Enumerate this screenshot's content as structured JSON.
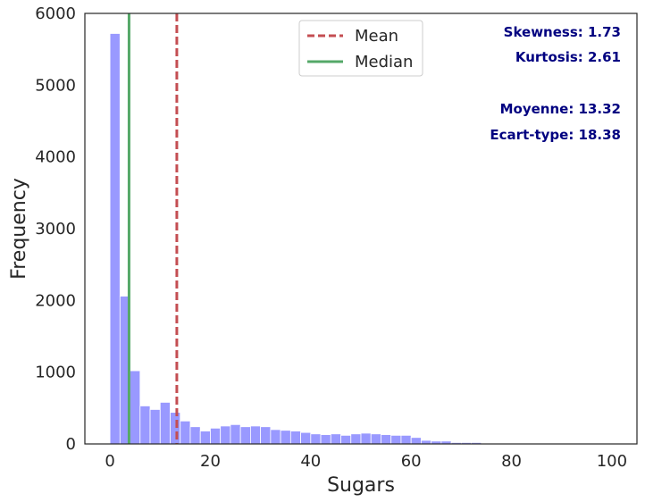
{
  "chart_data": {
    "type": "bar",
    "subtype": "histogram",
    "xlabel": "Sugars",
    "ylabel": "Frequency",
    "xlim": [
      -5,
      105
    ],
    "ylim": [
      0,
      6000
    ],
    "xticks": [
      0,
      20,
      40,
      60,
      80,
      100
    ],
    "yticks": [
      0,
      1000,
      2000,
      3000,
      4000,
      5000,
      6000
    ],
    "grid": false,
    "bin_width": 2,
    "bin_start": 0,
    "counts": [
      5720,
      2060,
      1020,
      530,
      480,
      580,
      440,
      320,
      240,
      180,
      220,
      250,
      270,
      240,
      250,
      240,
      200,
      190,
      180,
      160,
      140,
      130,
      140,
      120,
      140,
      150,
      140,
      130,
      120,
      120,
      90,
      50,
      40,
      40,
      20,
      20,
      20,
      10,
      5,
      5,
      5,
      5,
      5,
      5,
      5,
      5,
      5,
      5,
      5,
      5
    ],
    "bar_color": "#9999ff",
    "mean": 13.32,
    "median": 3.8,
    "mean_color": "#c44e52",
    "median_color": "#55a868",
    "text_color": "#000080",
    "legend": {
      "placement": "top-center",
      "entries": [
        {
          "label": "Mean",
          "style": "dashed",
          "color": "#c44e52"
        },
        {
          "label": "Median",
          "style": "solid",
          "color": "#55a868"
        }
      ]
    },
    "annotations": [
      "Skewness: 1.73",
      "Kurtosis: 2.61",
      "Moyenne: 13.32",
      "Ecart-type: 18.38"
    ]
  }
}
